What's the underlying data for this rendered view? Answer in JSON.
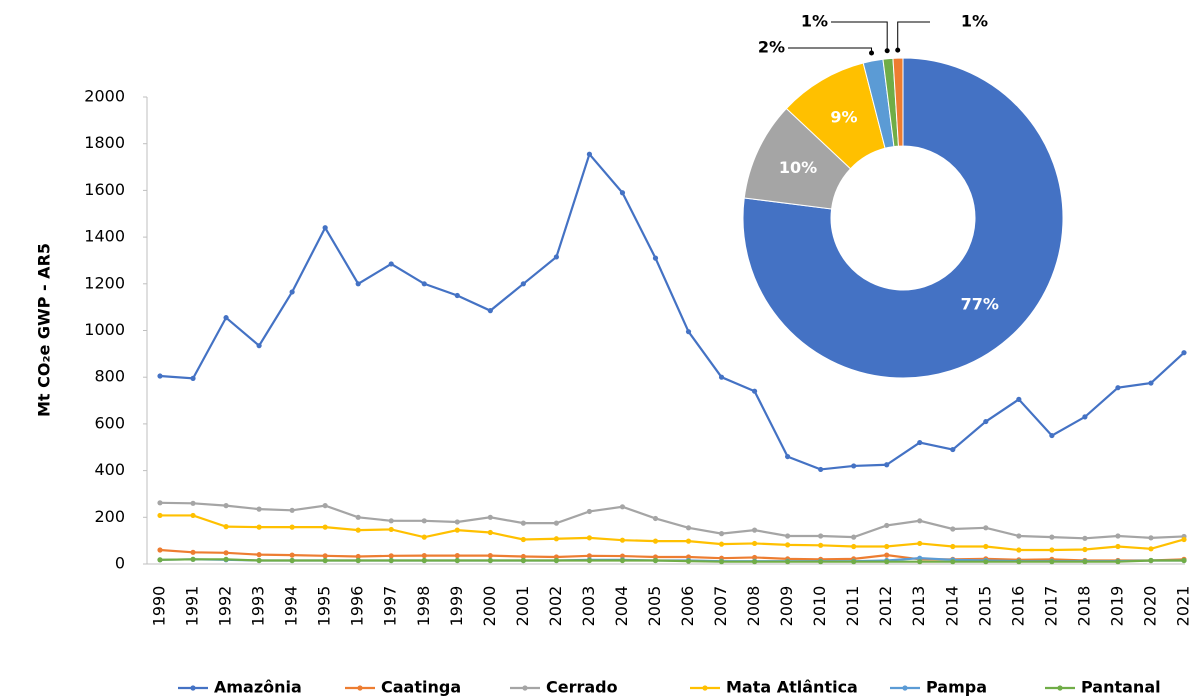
{
  "chart_data": [
    {
      "type": "line",
      "y_label": "Mt CO₂e GWP - AR5",
      "categories": [
        "1990",
        "1991",
        "1992",
        "1993",
        "1994",
        "1995",
        "1996",
        "1997",
        "1998",
        "1999",
        "2000",
        "2001",
        "2002",
        "2003",
        "2004",
        "2005",
        "2006",
        "2007",
        "2008",
        "2009",
        "2010",
        "2011",
        "2012",
        "2013",
        "2014",
        "2015",
        "2016",
        "2017",
        "2018",
        "2019",
        "2020",
        "2021"
      ],
      "ylim": [
        0,
        2000
      ],
      "yticks": [
        0,
        200,
        400,
        600,
        800,
        1000,
        1200,
        1400,
        1600,
        1800,
        2000
      ],
      "grid": false,
      "legend": "bottom",
      "series": [
        {
          "name": "Amazônia",
          "color": "#4472c4",
          "values": [
            805,
            795,
            1055,
            935,
            1165,
            1440,
            1200,
            1285,
            1200,
            1150,
            1085,
            1200,
            1315,
            1755,
            1590,
            1310,
            995,
            800,
            740,
            460,
            405,
            420,
            425,
            520,
            490,
            610,
            705,
            550,
            630,
            755,
            775,
            905
          ]
        },
        {
          "name": "Caatinga",
          "color": "#ed7d31",
          "values": [
            60,
            50,
            48,
            40,
            38,
            35,
            32,
            35,
            36,
            36,
            36,
            32,
            30,
            35,
            34,
            30,
            30,
            25,
            28,
            22,
            20,
            22,
            38,
            20,
            20,
            22,
            18,
            20,
            15,
            15,
            15,
            20
          ]
        },
        {
          "name": "Cerrado",
          "color": "#a5a5a5",
          "values": [
            262,
            260,
            250,
            235,
            230,
            250,
            200,
            185,
            185,
            180,
            200,
            175,
            175,
            225,
            245,
            195,
            155,
            130,
            145,
            120,
            120,
            115,
            165,
            185,
            150,
            155,
            120,
            115,
            110,
            120,
            112,
            118
          ]
        },
        {
          "name": "Mata Atlântica",
          "color": "#ffc000",
          "values": [
            208,
            208,
            160,
            158,
            158,
            158,
            145,
            148,
            115,
            145,
            135,
            105,
            108,
            112,
            102,
            98,
            98,
            85,
            88,
            82,
            80,
            75,
            75,
            88,
            75,
            75,
            60,
            60,
            62,
            75,
            65,
            105
          ]
        },
        {
          "name": "Pampa",
          "color": "#5b9bd5",
          "values": [
            18,
            20,
            18,
            15,
            15,
            15,
            15,
            15,
            15,
            15,
            15,
            15,
            15,
            18,
            18,
            15,
            15,
            12,
            12,
            12,
            12,
            12,
            15,
            25,
            18,
            15,
            12,
            12,
            12,
            12,
            15,
            15
          ]
        },
        {
          "name": "Pantanal",
          "color": "#70ad47",
          "values": [
            18,
            20,
            20,
            15,
            15,
            15,
            15,
            15,
            15,
            15,
            15,
            15,
            15,
            15,
            15,
            15,
            12,
            10,
            10,
            10,
            10,
            10,
            10,
            10,
            10,
            10,
            10,
            10,
            10,
            10,
            15,
            15
          ]
        }
      ]
    },
    {
      "type": "donut",
      "values": [
        77,
        10,
        9,
        2,
        1,
        1
      ],
      "value_labels": [
        "77%",
        "10%",
        "9%",
        "2%",
        "1%",
        "1%"
      ],
      "colors": [
        "#4472c4",
        "#a5a5a5",
        "#ffc000",
        "#5b9bd5",
        "#70ad47",
        "#ed7d31"
      ]
    }
  ]
}
